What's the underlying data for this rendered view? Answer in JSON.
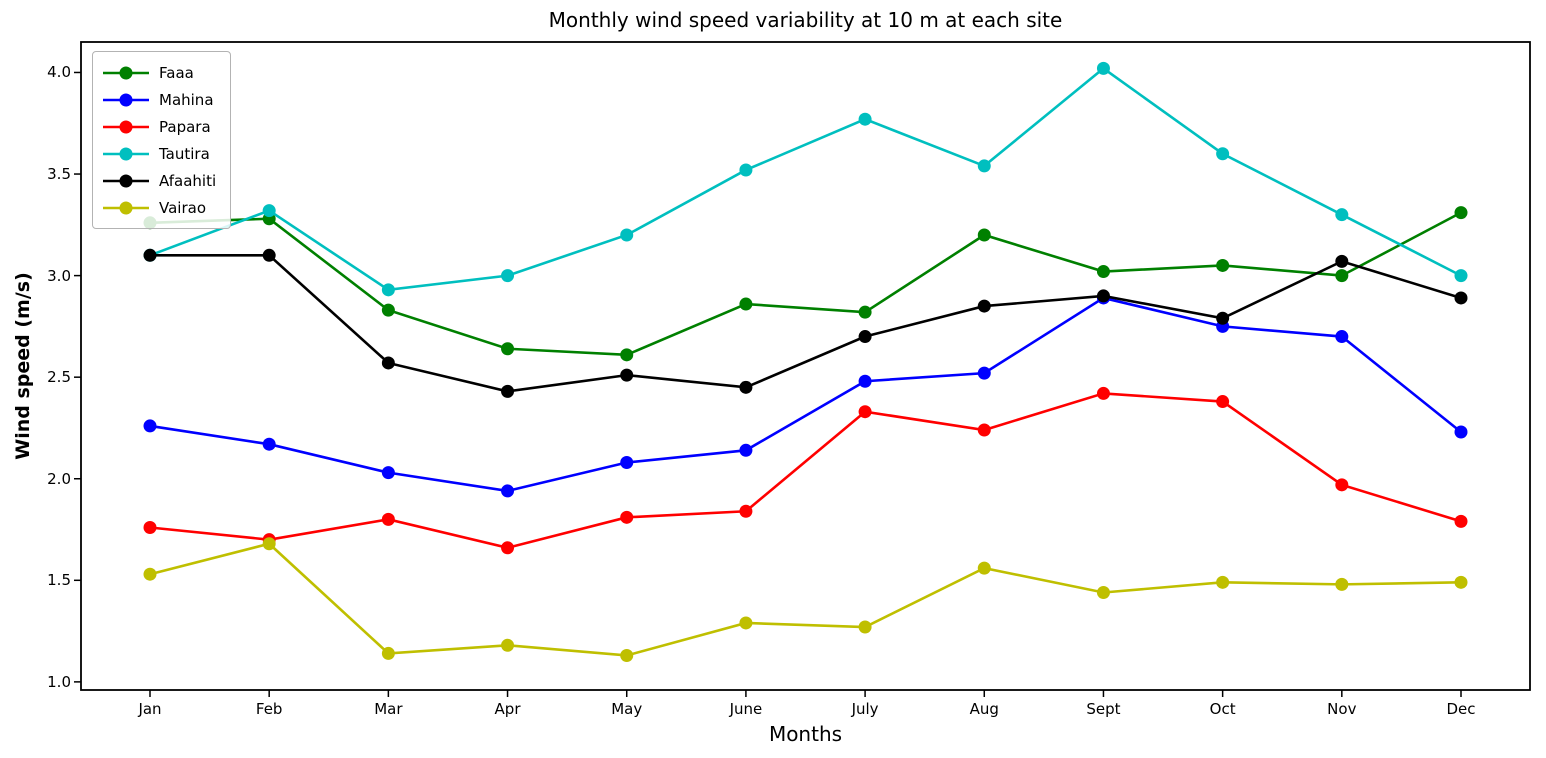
{
  "chart_data": {
    "type": "line",
    "title": "Monthly wind speed variability at 10 m at each site",
    "xlabel": "Months",
    "ylabel": "Wind speed (m/s)",
    "categories": [
      "Jan",
      "Feb",
      "Mar",
      "Apr",
      "May",
      "June",
      "July",
      "Aug",
      "Sept",
      "Oct",
      "Nov",
      "Dec"
    ],
    "ytick_values": [
      4.0,
      3.5,
      3.0,
      2.5,
      2.0,
      1.5,
      1.0
    ],
    "ytick_labels": [
      "4.0",
      "3.5",
      "3.0",
      "2.5",
      "2.0",
      "1.5",
      "1.0"
    ],
    "ylim": [
      0.96,
      4.15
    ],
    "grid": false,
    "legend_position": "upper left",
    "marker": "o",
    "axis_color": "#000000",
    "series": [
      {
        "name": "Faaa",
        "color": "#008000",
        "values": [
          3.26,
          3.28,
          2.83,
          2.64,
          2.61,
          2.86,
          2.82,
          3.2,
          3.02,
          3.05,
          3.0,
          3.31
        ]
      },
      {
        "name": "Mahina",
        "color": "#0000ff",
        "values": [
          2.26,
          2.17,
          2.03,
          1.94,
          2.08,
          2.14,
          2.48,
          2.52,
          2.89,
          2.75,
          2.7,
          2.23
        ]
      },
      {
        "name": "Papara",
        "color": "#ff0000",
        "values": [
          1.76,
          1.7,
          1.8,
          1.66,
          1.81,
          1.84,
          2.33,
          2.24,
          2.42,
          2.38,
          1.97,
          1.79
        ]
      },
      {
        "name": "Tautira",
        "color": "#00bfbf",
        "values": [
          3.1,
          3.32,
          2.93,
          3.0,
          3.2,
          3.52,
          3.77,
          3.54,
          4.02,
          3.6,
          3.3,
          3.0
        ]
      },
      {
        "name": "Afaahiti",
        "color": "#000000",
        "values": [
          3.1,
          3.1,
          2.57,
          2.43,
          2.51,
          2.45,
          2.7,
          2.85,
          2.9,
          2.79,
          3.07,
          2.89
        ]
      },
      {
        "name": "Vairao",
        "color": "#bfbf00",
        "values": [
          1.53,
          1.68,
          1.14,
          1.18,
          1.13,
          1.29,
          1.27,
          1.56,
          1.44,
          1.49,
          1.48,
          1.49
        ]
      }
    ]
  }
}
